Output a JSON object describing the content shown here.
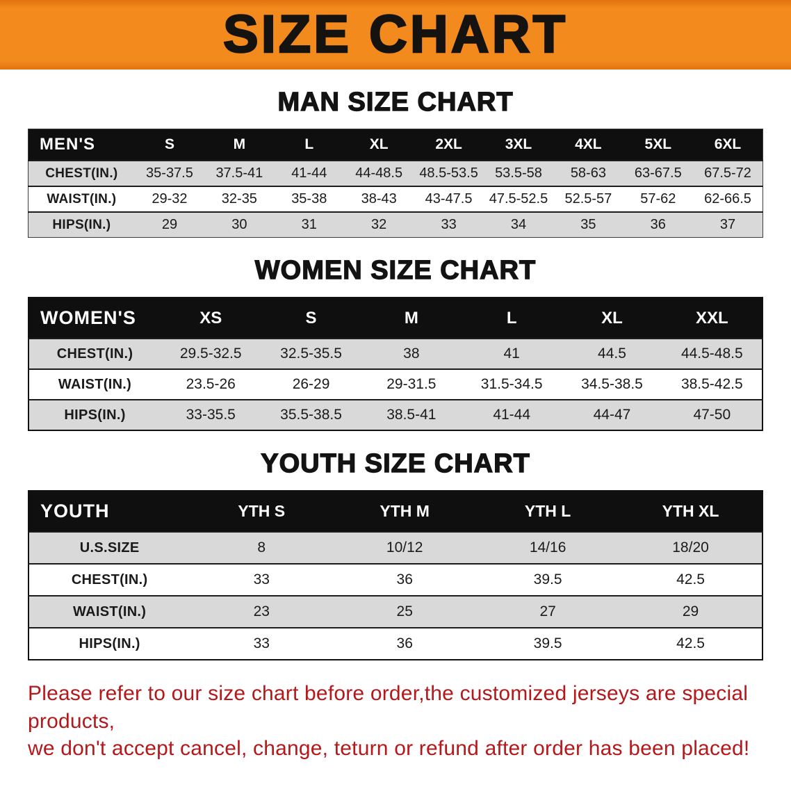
{
  "banner": {
    "title": "SIZE CHART"
  },
  "colors": {
    "banner_orange": "#f28a1e",
    "table_header_black": "#0f0f0f",
    "row_gray": "#d9d9d9",
    "note_red": "#b5181a"
  },
  "tables": {
    "men": {
      "heading": "MAN SIZE CHART",
      "header": [
        "MEN'S",
        "S",
        "M",
        "L",
        "XL",
        "2XL",
        "3XL",
        "4XL",
        "5XL",
        "6XL"
      ],
      "rows": [
        {
          "label": "CHEST(IN.)",
          "values": [
            "35-37.5",
            "37.5-41",
            "41-44",
            "44-48.5",
            "48.5-53.5",
            "53.5-58",
            "58-63",
            "63-67.5",
            "67.5-72"
          ]
        },
        {
          "label": "WAIST(IN.)",
          "values": [
            "29-32",
            "32-35",
            "35-38",
            "38-43",
            "43-47.5",
            "47.5-52.5",
            "52.5-57",
            "57-62",
            "62-66.5"
          ]
        },
        {
          "label": "HIPS(IN.)",
          "values": [
            "29",
            "30",
            "31",
            "32",
            "33",
            "34",
            "35",
            "36",
            "37"
          ]
        }
      ]
    },
    "women": {
      "heading": "WOMEN SIZE CHART",
      "header": [
        "WOMEN'S",
        "XS",
        "S",
        "M",
        "L",
        "XL",
        "XXL"
      ],
      "rows": [
        {
          "label": "CHEST(IN.)",
          "values": [
            "29.5-32.5",
            "32.5-35.5",
            "38",
            "41",
            "44.5",
            "44.5-48.5"
          ]
        },
        {
          "label": "WAIST(IN.)",
          "values": [
            "23.5-26",
            "26-29",
            "29-31.5",
            "31.5-34.5",
            "34.5-38.5",
            "38.5-42.5"
          ]
        },
        {
          "label": "HIPS(IN.)",
          "values": [
            "33-35.5",
            "35.5-38.5",
            "38.5-41",
            "41-44",
            "44-47",
            "47-50"
          ]
        }
      ]
    },
    "youth": {
      "heading": "YOUTH SIZE CHART",
      "header": [
        "YOUTH",
        "YTH S",
        "YTH M",
        "YTH L",
        "YTH XL"
      ],
      "rows": [
        {
          "label": "U.S.SIZE",
          "values": [
            "8",
            "10/12",
            "14/16",
            "18/20"
          ]
        },
        {
          "label": "CHEST(IN.)",
          "values": [
            "33",
            "36",
            "39.5",
            "42.5"
          ]
        },
        {
          "label": "WAIST(IN.)",
          "values": [
            "23",
            "25",
            "27",
            "29"
          ]
        },
        {
          "label": "HIPS(IN.)",
          "values": [
            "33",
            "36",
            "39.5",
            "42.5"
          ]
        }
      ]
    }
  },
  "footer": {
    "line1": "Please refer to our size chart before order,the customized jerseys are special products,",
    "line2": "we don't accept cancel, change, teturn or refund after order has been placed!"
  }
}
